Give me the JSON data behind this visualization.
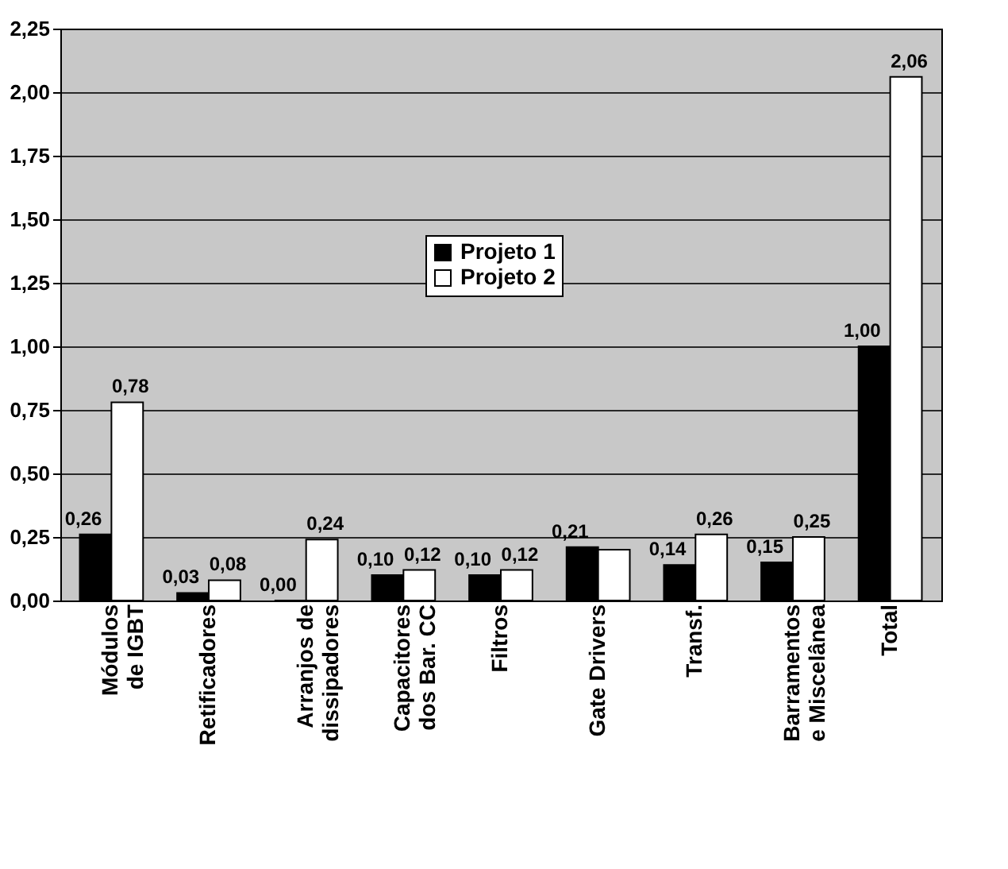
{
  "chart_data": {
    "type": "bar",
    "categories": [
      "Módulos de IGBT",
      "Retificadores",
      "Arranjos de dissipadores",
      "Capacitores dos Bar. CC",
      "Filtros",
      "Gate Drivers",
      "Transf.",
      "Barramentos e Miscelânea",
      "Total"
    ],
    "series": [
      {
        "name": "Projeto 1",
        "color": "#000000",
        "values": [
          0.26,
          0.03,
          0.0,
          0.1,
          0.1,
          0.21,
          0.14,
          0.15,
          1.0
        ],
        "value_labels": [
          "0,26",
          "0,03",
          "0,00",
          "0,10",
          "0,10",
          "0,21",
          "0,14",
          "0,15",
          "1,00"
        ]
      },
      {
        "name": "Projeto 2",
        "color": "#ffffff",
        "values": [
          0.78,
          0.08,
          0.24,
          0.12,
          0.12,
          0.2,
          0.26,
          0.25,
          2.06
        ],
        "value_labels": [
          "0,78",
          "0,08",
          "0,24",
          "0,12",
          "0,12",
          null,
          "0,26",
          "0,25",
          "2,06"
        ]
      }
    ],
    "ylim": [
      0,
      2.25
    ],
    "yticks": [
      {
        "value": 0,
        "label": "0,00"
      },
      {
        "value": 0.25,
        "label": "0,25"
      },
      {
        "value": 0.5,
        "label": "0,50"
      },
      {
        "value": 0.75,
        "label": "0,75"
      },
      {
        "value": 1,
        "label": "1,00"
      },
      {
        "value": 1.25,
        "label": "1,25"
      },
      {
        "value": 1.5,
        "label": "1,50"
      },
      {
        "value": 1.75,
        "label": "1,75"
      },
      {
        "value": 2,
        "label": "2,00"
      },
      {
        "value": 2.25,
        "label": "2,25"
      }
    ],
    "grid": "y",
    "legend": "center"
  }
}
